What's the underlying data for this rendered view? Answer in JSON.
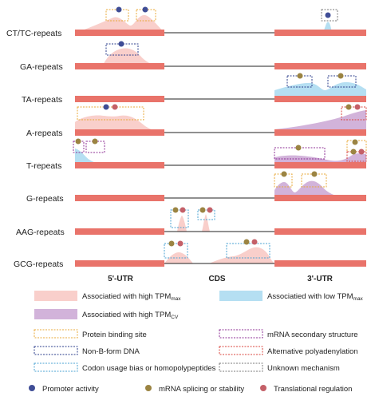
{
  "rows": [
    {
      "label": "CT/TC-repeats"
    },
    {
      "label": "GA-repeats"
    },
    {
      "label": "TA-repeats"
    },
    {
      "label": "A-repeats"
    },
    {
      "label": "T-repeats"
    },
    {
      "label": "G-repeats"
    },
    {
      "label": "AAG-repeats"
    },
    {
      "label": "GCG-repeats"
    }
  ],
  "regions": {
    "utr5": "5'-UTR",
    "cds": "CDS",
    "utr3": "3'-UTR"
  },
  "legend": {
    "fills": [
      {
        "key": "high_tpm_max",
        "prefix": "Associatied with high TPM",
        "sub": "max",
        "color": "#f9cfcb"
      },
      {
        "key": "low_tpm_max",
        "prefix": "Associatied with low TPM",
        "sub": "max",
        "color": "#b5dff2"
      },
      {
        "key": "high_tpm_cv",
        "prefix": "Associatied with high TPM",
        "sub": "CV",
        "color": "#d2b3da"
      }
    ],
    "boxes": [
      {
        "key": "protein",
        "label": "Protein binding site",
        "color": "#e8a93a"
      },
      {
        "key": "mrna2",
        "label": "mRNA secondary structure",
        "color": "#8e2f95"
      },
      {
        "key": "nonb",
        "label": "Non-B-form DNA",
        "color": "#2d3f8c"
      },
      {
        "key": "polya",
        "label": "Alternative polyadenylation",
        "color": "#d9453d"
      },
      {
        "key": "codon",
        "label": "Codon usage bias or homopolypeptides",
        "color": "#4ba3d3"
      },
      {
        "key": "unknown",
        "label": "Unknown mechanism",
        "color": "#7a7a7a"
      }
    ],
    "dots": [
      {
        "key": "promoter",
        "label": "Promoter activity",
        "color": "#3f4d96"
      },
      {
        "key": "splicing",
        "label": "mRNA splicing or stability",
        "color": "#9b8442"
      },
      {
        "key": "translational",
        "label": "Translational regulation",
        "color": "#c46068"
      }
    ]
  },
  "colors": {
    "bar": "#e9736a",
    "line": "#222222"
  }
}
